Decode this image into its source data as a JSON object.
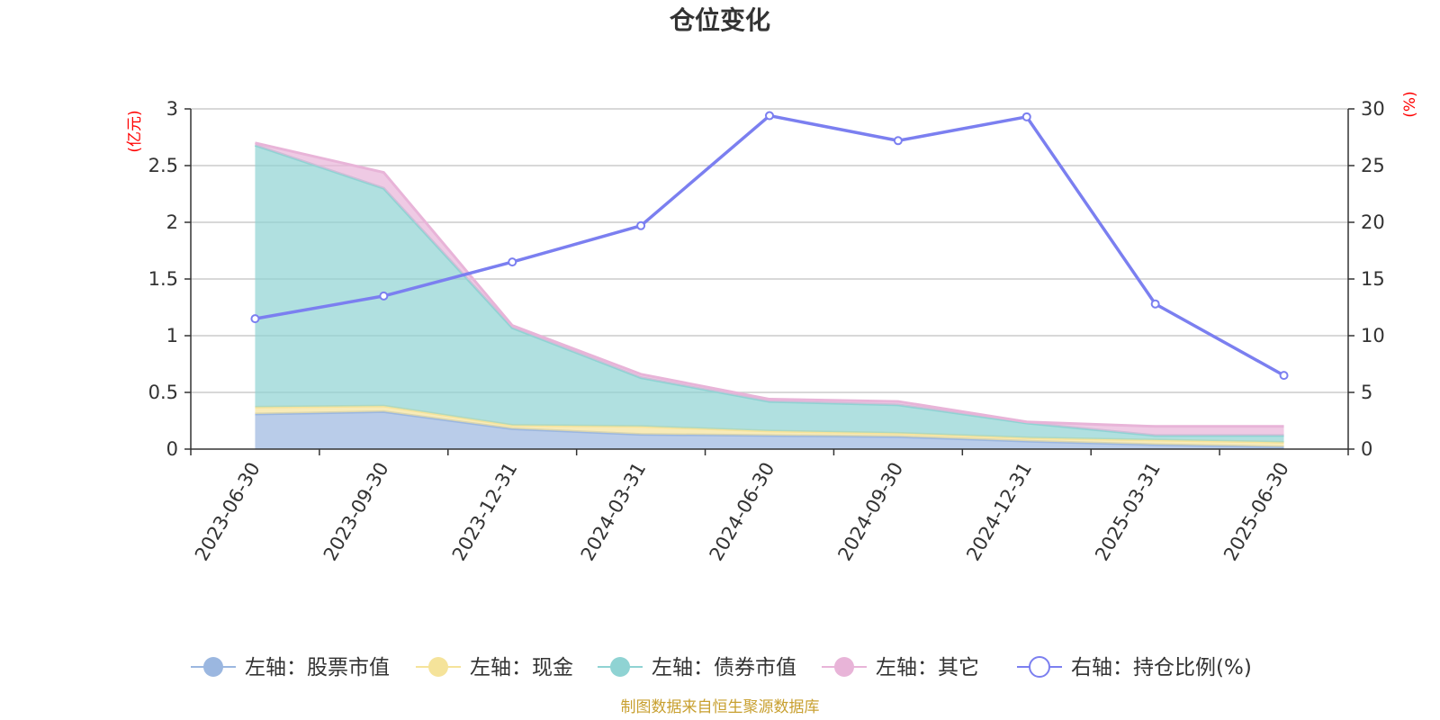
{
  "title": "仓位变化",
  "source": "制图数据来自恒生聚源数据库",
  "left_unit": "(亿元)",
  "right_unit": "(%)",
  "chart_data": {
    "type": "area",
    "title": "仓位变化",
    "categories": [
      "2023-06-30",
      "2023-09-30",
      "2023-12-31",
      "2024-03-31",
      "2024-06-30",
      "2024-09-30",
      "2024-12-31",
      "2025-03-31",
      "2025-06-30"
    ],
    "left_axis": {
      "unit": "(亿元)",
      "ylim": [
        0,
        3
      ],
      "ticks": [
        "0",
        "0.5",
        "1",
        "1.5",
        "2",
        "2.5",
        "3"
      ]
    },
    "right_axis": {
      "unit": "(%)",
      "ylim": [
        0,
        30
      ],
      "ticks": [
        "0",
        "5",
        "10",
        "15",
        "20",
        "25",
        "30"
      ]
    },
    "stacked_series": [
      {
        "name": "左轴：股票市值",
        "axis": "left",
        "color": "#9bb7e0",
        "values": [
          0.31,
          0.33,
          0.18,
          0.13,
          0.12,
          0.11,
          0.07,
          0.04,
          0.02
        ]
      },
      {
        "name": "左轴：现金",
        "axis": "left",
        "color": "#f5e39a",
        "values": [
          0.06,
          0.05,
          0.03,
          0.07,
          0.04,
          0.03,
          0.03,
          0.04,
          0.04
        ]
      },
      {
        "name": "左轴：债券市值",
        "axis": "left",
        "color": "#8fd3d3",
        "values": [
          2.31,
          1.92,
          0.86,
          0.43,
          0.26,
          0.25,
          0.13,
          0.04,
          0.06
        ]
      },
      {
        "name": "左轴：其它",
        "axis": "left",
        "color": "#e8b4d8",
        "values": [
          0.02,
          0.14,
          0.02,
          0.03,
          0.02,
          0.03,
          0.01,
          0.08,
          0.08
        ]
      }
    ],
    "line_series": [
      {
        "name": "右轴：持仓比例(%)",
        "axis": "right",
        "color": "#7b7ff0",
        "values": [
          11.5,
          13.5,
          16.5,
          19.7,
          29.4,
          27.2,
          29.3,
          12.8,
          6.5
        ]
      }
    ],
    "grid": true,
    "legend_position": "bottom"
  }
}
